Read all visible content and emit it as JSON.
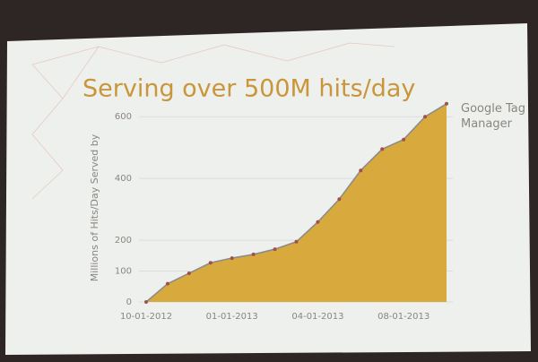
{
  "chart_data": {
    "type": "area",
    "title": "Serving over 500M hits/day",
    "y_label": "Millions of Hits/Day Served by",
    "x": [
      "10-01-2012",
      null,
      null,
      null,
      "01-01-2013",
      null,
      null,
      null,
      "04-01-2013",
      null,
      null,
      null,
      "08-01-2013",
      null,
      null
    ],
    "series": [
      {
        "name": "Google Tag Manager",
        "color": "#d8a93c",
        "line_color": "#8c8c8c",
        "values": [
          0,
          59,
          93,
          127,
          142,
          154,
          171,
          195,
          259,
          333,
          426,
          495,
          526,
          600,
          642
        ]
      }
    ],
    "ylim": [
      0,
      650
    ],
    "yticks": [
      0,
      100,
      200,
      400,
      600
    ],
    "grid": true
  }
}
